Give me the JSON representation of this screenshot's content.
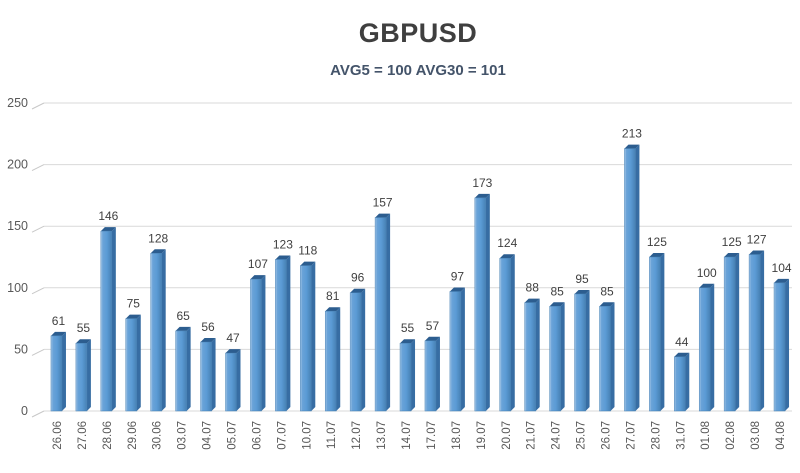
{
  "title": "GBPUSD",
  "subtitle": "AVG5 = 100 AVG30 = 101",
  "chart_data": {
    "type": "bar",
    "title": "GBPUSD",
    "subtitle": "AVG5 = 100 AVG30 = 101",
    "categories": [
      "26.06",
      "27.06",
      "28.06",
      "29.06",
      "30.06",
      "03.07",
      "04.07",
      "05.07",
      "06.07",
      "07.07",
      "10.07",
      "11.07",
      "12.07",
      "13.07",
      "14.07",
      "17.07",
      "18.07",
      "19.07",
      "20.07",
      "21.07",
      "24.07",
      "25.07",
      "26.07",
      "27.07",
      "28.07",
      "31.07",
      "01.08",
      "02.08",
      "03.08",
      "04.08"
    ],
    "values": [
      61,
      55,
      146,
      75,
      128,
      65,
      56,
      47,
      107,
      123,
      118,
      81,
      96,
      157,
      55,
      57,
      97,
      173,
      124,
      88,
      85,
      95,
      85,
      213,
      125,
      44,
      100,
      125,
      127,
      104
    ],
    "xlabel": "",
    "ylabel": "",
    "ylim": [
      0,
      250
    ],
    "yticks": [
      0,
      50,
      100,
      150,
      200,
      250
    ],
    "grid": true,
    "legend": "none",
    "colors": {
      "bar_face": "#5b9bd5",
      "bar_face_light": "#a9c9e8",
      "bar_face_dark": "#4781b4",
      "bar_top": "#2c5d8f",
      "bar_side": "#376da3",
      "value_label": "#404040",
      "axis_label": "#595959",
      "gridline": "#d9d9d9",
      "grid_corner": "#c8c8c8"
    }
  }
}
